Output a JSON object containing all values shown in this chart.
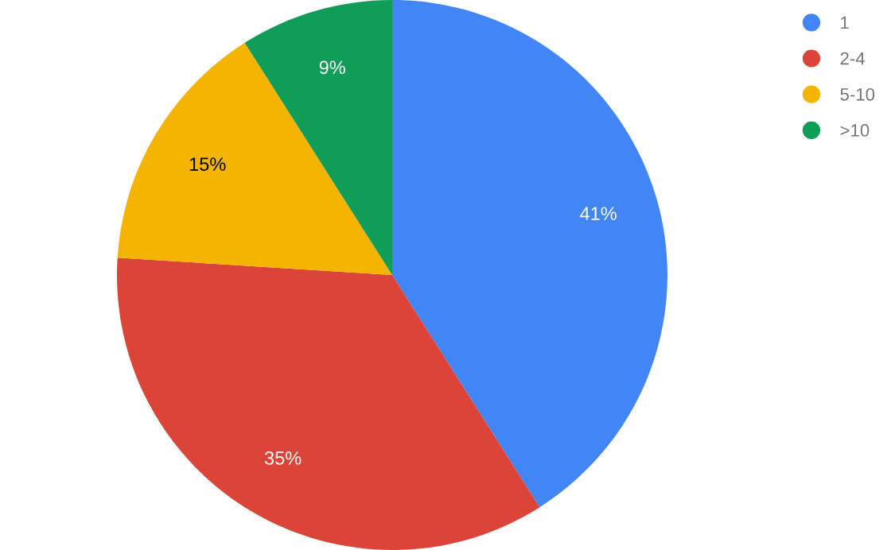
{
  "chart_data": {
    "type": "pie",
    "categories": [
      "1",
      "2-4",
      "5-10",
      ">10"
    ],
    "values": [
      41,
      35,
      15,
      9
    ],
    "colors": [
      "#4285f4",
      "#db4437",
      "#f4b400",
      "#0f9d58"
    ],
    "value_labels": [
      "41%",
      "35%",
      "15%",
      "9%"
    ],
    "legend": "top right"
  }
}
